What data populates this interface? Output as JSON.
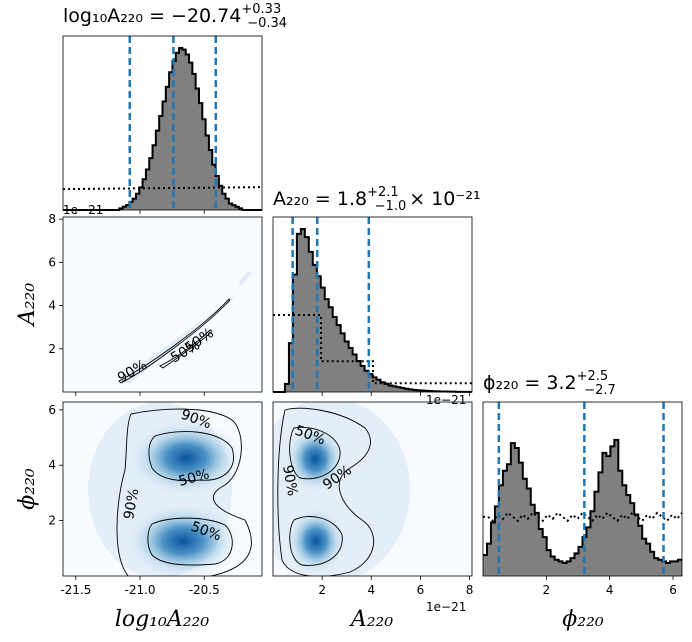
{
  "chart_data": {
    "type": "corner",
    "parameters": [
      "log10A220",
      "A220",
      "phi220"
    ],
    "colors": {
      "hist_fill": "#808080",
      "hist_edge": "#000000",
      "quantile_line": "#1f77b4",
      "density": "#08519c",
      "prior": "#000000"
    },
    "titles": {
      "log10A220": {
        "name": "log₁₀A₂₂₀",
        "median": "−20.74",
        "plus": "+0.33",
        "minus": "−0.34"
      },
      "A220": {
        "name": "A₂₂₀",
        "median": "1.8",
        "plus": "+2.1",
        "minus": "−1.0",
        "scale": "× 10⁻²¹"
      },
      "phi220": {
        "name": "ϕ₂₂₀",
        "median": "3.2",
        "plus": "+2.5",
        "minus": "−2.7"
      }
    },
    "axes": {
      "log10A220": {
        "label": "log₁₀A₂₂₀",
        "range": [
          -21.6,
          -20.05
        ],
        "ticks": [
          "-21.5",
          "-21.0",
          "-20.5"
        ],
        "tick_values": [
          -21.5,
          -21.0,
          -20.5
        ]
      },
      "A220": {
        "label": "A₂₂₀",
        "range": [
          0.0,
          8.1
        ],
        "ticks": [
          "2",
          "4",
          "6",
          "8"
        ],
        "tick_values": [
          2,
          4,
          6,
          8
        ],
        "offset": "1e−21"
      },
      "phi220": {
        "label": "ϕ₂₂₀",
        "range": [
          0.0,
          6.283
        ],
        "ticks": [
          "2",
          "4",
          "6"
        ],
        "tick_values": [
          2,
          4,
          6
        ]
      }
    },
    "quantiles": {
      "log10A220": [
        -21.08,
        -20.74,
        -20.41
      ],
      "A220": [
        0.8,
        1.8,
        3.9
      ],
      "phi220": [
        0.5,
        3.2,
        5.7
      ]
    },
    "histograms": {
      "log10A220": [
        0,
        0,
        0,
        0,
        0,
        0,
        0,
        0,
        0,
        0,
        0,
        0,
        0,
        0,
        0,
        0,
        0,
        0.01,
        0.02,
        0.03,
        0.05,
        0.07,
        0.1,
        0.14,
        0.19,
        0.25,
        0.32,
        0.4,
        0.49,
        0.58,
        0.67,
        0.76,
        0.85,
        0.92,
        0.97,
        1.0,
        0.99,
        0.96,
        0.91,
        0.84,
        0.75,
        0.66,
        0.56,
        0.46,
        0.37,
        0.28,
        0.21,
        0.15,
        0.1,
        0.07,
        0.04,
        0.03,
        0.02,
        0.01,
        0,
        0,
        0,
        0,
        0,
        0
      ],
      "A220": [
        0,
        0,
        0,
        0.05,
        0.3,
        0.72,
        0.97,
        1.0,
        0.95,
        0.86,
        0.78,
        0.71,
        0.64,
        0.57,
        0.52,
        0.46,
        0.41,
        0.36,
        0.31,
        0.27,
        0.23,
        0.19,
        0.16,
        0.13,
        0.11,
        0.09,
        0.075,
        0.06,
        0.05,
        0.04,
        0.035,
        0.03,
        0.025,
        0.02,
        0.016,
        0.013,
        0.011,
        0.009,
        0.007,
        0.006,
        0.005,
        0.004,
        0.003,
        0.003,
        0.002,
        0.002,
        0.001,
        0.001,
        0.001,
        0.001
      ],
      "phi220": [
        0.13,
        0.2,
        0.33,
        0.43,
        0.56,
        0.65,
        0.69,
        0.82,
        0.79,
        0.7,
        0.6,
        0.54,
        0.44,
        0.39,
        0.29,
        0.24,
        0.16,
        0.12,
        0.1,
        0.09,
        0.08,
        0.09,
        0.11,
        0.14,
        0.18,
        0.24,
        0.3,
        0.4,
        0.52,
        0.64,
        0.76,
        0.74,
        0.8,
        0.84,
        0.65,
        0.56,
        0.5,
        0.45,
        0.38,
        0.31,
        0.23,
        0.2,
        0.15,
        0.11,
        0.1,
        0.09,
        0.08,
        0.09,
        0.09,
        0.1
      ]
    },
    "prior_levels": {
      "log10A220": 0.12,
      "A220_left": 0.44,
      "A220_right": 0.05,
      "phi220": 0.34
    },
    "contour_labels": {
      "log10A220_A220": [
        "90%",
        "50%",
        "50%"
      ],
      "log10A220_phi220": [
        "90%",
        "50%",
        "90%",
        "50%"
      ],
      "A220_phi220": [
        "50%",
        "90%",
        "90%"
      ]
    }
  }
}
